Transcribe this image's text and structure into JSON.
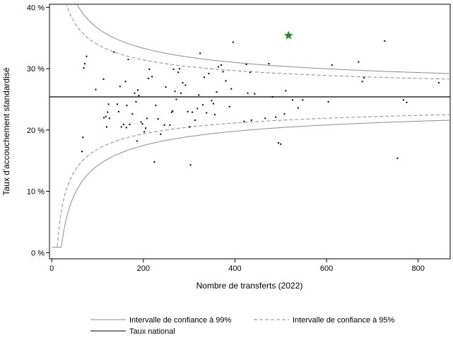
{
  "chart_data": {
    "type": "scatter",
    "subtype": "funnel-plot",
    "xlabel": "Nombre de transferts (2022)",
    "ylabel": "Taux d'accouchement standardisé",
    "xlim": [
      -5,
      870
    ],
    "ylim": [
      -1,
      40.5
    ],
    "x_ticks": [
      0,
      200,
      400,
      600,
      800
    ],
    "x_tick_labels": [
      "0",
      "200",
      "400",
      "600",
      "800"
    ],
    "y_ticks": [
      0,
      10,
      20,
      30,
      40
    ],
    "y_tick_labels": [
      "0 %",
      "10 %",
      "20 %",
      "30 %",
      "40 %"
    ],
    "grid": false,
    "national_rate": 25.4,
    "ci_curves": [
      {
        "name": "Intervalle de confiance à 99%",
        "z": 2.576,
        "dash": "solid",
        "color": "#8c8c8c"
      },
      {
        "name": "Intervalle de confiance à 95%",
        "z": 1.96,
        "dash": "dashed",
        "color": "#8c8c8c"
      }
    ],
    "national_line": {
      "name": "Taux national",
      "color": "#000000"
    },
    "legend_position": "bottom",
    "points": [
      [
        66,
        16.5
      ],
      [
        68,
        18.8
      ],
      [
        70,
        30.1
      ],
      [
        72,
        30.8
      ],
      [
        76,
        32.0
      ],
      [
        96,
        26.6
      ],
      [
        113,
        28.3
      ],
      [
        114,
        22.0
      ],
      [
        118,
        22.2
      ],
      [
        120,
        20.5
      ],
      [
        122,
        22.9
      ],
      [
        124,
        24.2
      ],
      [
        126,
        21.9
      ],
      [
        136,
        32.7
      ],
      [
        143,
        24.2
      ],
      [
        146,
        23.0
      ],
      [
        149,
        27.1
      ],
      [
        152,
        20.5
      ],
      [
        157,
        20.9
      ],
      [
        161,
        27.9
      ],
      [
        163,
        20.4
      ],
      [
        164,
        24.0
      ],
      [
        167,
        31.5
      ],
      [
        170,
        20.9
      ],
      [
        176,
        22.6
      ],
      [
        181,
        26.0
      ],
      [
        184,
        24.6
      ],
      [
        186,
        18.2
      ],
      [
        188,
        26.5
      ],
      [
        190,
        25.6
      ],
      [
        195,
        21.3
      ],
      [
        198,
        21.0
      ],
      [
        202,
        19.7
      ],
      [
        205,
        20.3
      ],
      [
        208,
        21.9
      ],
      [
        211,
        28.4
      ],
      [
        213,
        29.9
      ],
      [
        219,
        28.7
      ],
      [
        224,
        14.8
      ],
      [
        227,
        24.0
      ],
      [
        232,
        21.8
      ],
      [
        238,
        19.3
      ],
      [
        246,
        20.8
      ],
      [
        249,
        27.0
      ],
      [
        258,
        20.8
      ],
      [
        262,
        22.9
      ],
      [
        264,
        23.1
      ],
      [
        266,
        29.9
      ],
      [
        269,
        26.3
      ],
      [
        272,
        25.0
      ],
      [
        276,
        29.4
      ],
      [
        279,
        30.0
      ],
      [
        282,
        26.0
      ],
      [
        286,
        27.7
      ],
      [
        292,
        27.3
      ],
      [
        297,
        23.0
      ],
      [
        301,
        20.5
      ],
      [
        303,
        14.3
      ],
      [
        307,
        22.9
      ],
      [
        313,
        21.6
      ],
      [
        318,
        23.5
      ],
      [
        321,
        25.7
      ],
      [
        324,
        32.5
      ],
      [
        330,
        24.1
      ],
      [
        333,
        28.6
      ],
      [
        338,
        22.8
      ],
      [
        343,
        29.2
      ],
      [
        349,
        24.8
      ],
      [
        353,
        24.3
      ],
      [
        356,
        22.5
      ],
      [
        360,
        26.2
      ],
      [
        364,
        30.3
      ],
      [
        370,
        30.6
      ],
      [
        374,
        29.5
      ],
      [
        380,
        28.0
      ],
      [
        388,
        23.8
      ],
      [
        392,
        26.7
      ],
      [
        396,
        34.3
      ],
      [
        420,
        21.4
      ],
      [
        425,
        30.7
      ],
      [
        428,
        26.0
      ],
      [
        433,
        29.4
      ],
      [
        436,
        21.6
      ],
      [
        443,
        25.9
      ],
      [
        466,
        21.9
      ],
      [
        474,
        30.8
      ],
      [
        482,
        25.4
      ],
      [
        489,
        22.1
      ],
      [
        495,
        17.9
      ],
      [
        500,
        17.7
      ],
      [
        508,
        22.6
      ],
      [
        511,
        26.4
      ],
      [
        526,
        24.9
      ],
      [
        538,
        23.6
      ],
      [
        548,
        24.9
      ],
      [
        604,
        24.6
      ],
      [
        612,
        30.6
      ],
      [
        670,
        31.1
      ],
      [
        678,
        27.9
      ],
      [
        682,
        28.5
      ],
      [
        727,
        34.5
      ],
      [
        755,
        15.4
      ],
      [
        768,
        24.9
      ],
      [
        775,
        24.5
      ],
      [
        845,
        27.7
      ]
    ],
    "highlight": {
      "x": 517,
      "y": 35.4,
      "marker": "star",
      "color": "#1e8c1e"
    },
    "legend": [
      {
        "label": "Intervalle de confiance à 99%",
        "style": "solid",
        "color": "#8c8c8c"
      },
      {
        "label": "Intervalle de confiance à 95%",
        "style": "dashed",
        "color": "#8c8c8c"
      },
      {
        "label": "Taux national",
        "style": "solid",
        "color": "#000000"
      }
    ]
  }
}
